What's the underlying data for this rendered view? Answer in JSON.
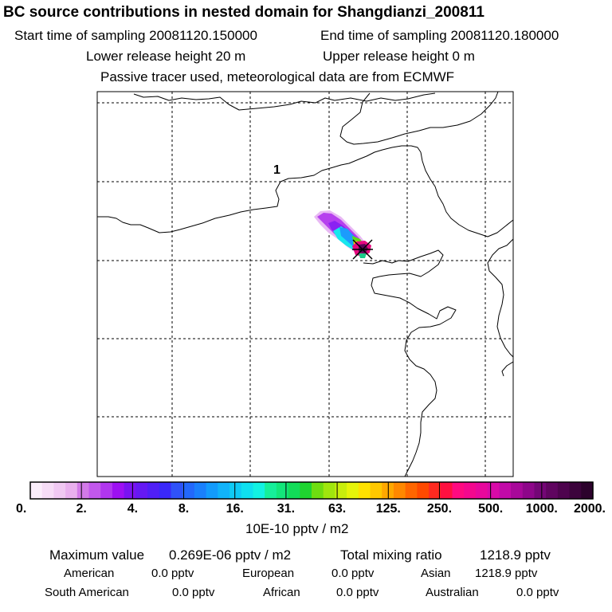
{
  "header": {
    "title": "BC  source contributions in nested domain for Shangdianzi_200811",
    "start_label": "Start time of sampling 20081120.150000",
    "end_label": "End time of sampling 20081120.180000",
    "lower_label": "Lower release height   20 m",
    "upper_label": "Upper release height    0 m",
    "tracer_note": "Passive tracer used, meteorological data are from ECMWF"
  },
  "map": {
    "grid_label": "1",
    "receptor": "Shangdianzi",
    "colors": {
      "coast": "#000000",
      "grid": "#000000"
    }
  },
  "colorbar": {
    "tick_labels": [
      "0.",
      "2.",
      "4.",
      "8.",
      "16.",
      "31.",
      "63.",
      "125.",
      "250.",
      "500.",
      "1000.",
      "2000."
    ],
    "colors": [
      "#fbeefb",
      "#f6dcf6",
      "#f0c8f2",
      "#e9b0ee",
      "#d27ae8",
      "#c258ec",
      "#b136ef",
      "#9d10f2",
      "#7a13f0",
      "#6519f3",
      "#501ff6",
      "#3a28f9",
      "#2f52f8",
      "#2368fb",
      "#1a80fc",
      "#139bfc",
      "#11b3fa",
      "#0fcbf5",
      "#0fe0f0",
      "#12f2e2",
      "#16ef9a",
      "#13e67a",
      "#12dc58",
      "#1fd430",
      "#6fdd10",
      "#a0e60e",
      "#c8ee0c",
      "#e6f40a",
      "#ffe200",
      "#ffc800",
      "#ffa800",
      "#ff8800",
      "#ff6600",
      "#ff4a00",
      "#ff2a20",
      "#ff1040",
      "#ff0a80",
      "#f4088e",
      "#e8089c",
      "#d80aa8",
      "#c20aa8",
      "#a8089a",
      "#8e068a",
      "#740676",
      "#600560",
      "#4e044e",
      "#3c033c",
      "#2c022c"
    ],
    "units": "10E-10 pptv / m2"
  },
  "summary": {
    "max_label": "Maximum value",
    "max_value": "0.269E-06 pptv / m2",
    "total_label": "Total mixing ratio",
    "total_value": "1218.9 pptv",
    "regions": [
      {
        "name": "American",
        "value": "0.0 pptv"
      },
      {
        "name": "European",
        "value": "0.0 pptv"
      },
      {
        "name": "Asian",
        "value": "1218.9 pptv"
      },
      {
        "name": "South American",
        "value": "0.0 pptv"
      },
      {
        "name": "African",
        "value": "0.0 pptv"
      },
      {
        "name": "Australian",
        "value": "0.0 pptv"
      }
    ]
  }
}
